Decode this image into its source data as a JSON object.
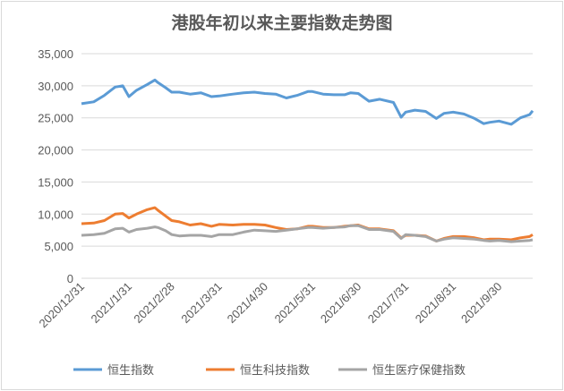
{
  "chart_data": {
    "type": "line",
    "title": "港股年初以来主要指数走势图",
    "xlabel": "",
    "ylabel": "",
    "ylim": [
      0,
      35000
    ],
    "y_ticks": [
      "0",
      "5,000",
      "10,000",
      "15,000",
      "20,000",
      "25,000",
      "30,000",
      "35,000"
    ],
    "x_ticks": [
      "2020/12/31",
      "2021/1/31",
      "2021/2/28",
      "2021/3/31",
      "2021/4/30",
      "2021/5/31",
      "2021/6/30",
      "2021/7/31",
      "2021/8/31",
      "2021/9/30"
    ],
    "grid": true,
    "legend_position": "bottom",
    "series": [
      {
        "name": "恒生指数",
        "color": "#5b9bd5",
        "x": [
          "2020/12/31",
          "2021/1/8",
          "2021/1/15",
          "2021/1/22",
          "2021/1/27",
          "2021/1/31",
          "2021/2/5",
          "2021/2/12",
          "2021/2/17",
          "2021/2/19",
          "2021/2/24",
          "2021/2/28",
          "2021/3/5",
          "2021/3/12",
          "2021/3/19",
          "2021/3/26",
          "2021/3/31",
          "2021/4/9",
          "2021/4/16",
          "2021/4/23",
          "2021/4/30",
          "2021/5/7",
          "2021/5/14",
          "2021/5/21",
          "2021/5/28",
          "2021/5/31",
          "2021/6/7",
          "2021/6/14",
          "2021/6/21",
          "2021/6/25",
          "2021/6/30",
          "2021/7/7",
          "2021/7/14",
          "2021/7/23",
          "2021/7/28",
          "2021/7/31",
          "2021/8/6",
          "2021/8/13",
          "2021/8/20",
          "2021/8/25",
          "2021/8/31",
          "2021/9/7",
          "2021/9/14",
          "2021/9/20",
          "2021/9/24",
          "2021/9/30",
          "2021/10/8",
          "2021/10/14",
          "2021/10/20",
          "2021/10/22"
        ],
        "values": [
          27200,
          27500,
          28500,
          29800,
          30000,
          28300,
          29300,
          30200,
          30900,
          30500,
          29700,
          29000,
          29000,
          28700,
          28900,
          28300,
          28400,
          28700,
          28900,
          29000,
          28800,
          28700,
          28100,
          28500,
          29100,
          29100,
          28700,
          28600,
          28600,
          28900,
          28800,
          27600,
          27900,
          27400,
          25100,
          25900,
          26200,
          26000,
          24900,
          25700,
          25900,
          25600,
          24900,
          24100,
          24300,
          24500,
          24000,
          25000,
          25500,
          26100
        ]
      },
      {
        "name": "恒生科技指数",
        "color": "#ed7d31",
        "x": [
          "2020/12/31",
          "2021/1/8",
          "2021/1/15",
          "2021/1/22",
          "2021/1/27",
          "2021/1/31",
          "2021/2/5",
          "2021/2/12",
          "2021/2/17",
          "2021/2/19",
          "2021/2/24",
          "2021/2/28",
          "2021/3/5",
          "2021/3/12",
          "2021/3/19",
          "2021/3/26",
          "2021/3/31",
          "2021/4/9",
          "2021/4/16",
          "2021/4/23",
          "2021/4/30",
          "2021/5/7",
          "2021/5/14",
          "2021/5/21",
          "2021/5/28",
          "2021/5/31",
          "2021/6/7",
          "2021/6/14",
          "2021/6/21",
          "2021/6/25",
          "2021/6/30",
          "2021/7/7",
          "2021/7/14",
          "2021/7/23",
          "2021/7/28",
          "2021/7/31",
          "2021/8/6",
          "2021/8/13",
          "2021/8/20",
          "2021/8/25",
          "2021/8/31",
          "2021/9/7",
          "2021/9/14",
          "2021/9/20",
          "2021/9/24",
          "2021/9/30",
          "2021/10/8",
          "2021/10/14",
          "2021/10/20",
          "2021/10/22"
        ],
        "values": [
          8500,
          8600,
          9000,
          10000,
          10100,
          9400,
          10000,
          10700,
          11000,
          10600,
          9700,
          9000,
          8800,
          8300,
          8500,
          8100,
          8400,
          8300,
          8400,
          8400,
          8300,
          7900,
          7600,
          7700,
          8100,
          8100,
          7900,
          7900,
          8100,
          8200,
          8300,
          7700,
          7700,
          7400,
          6300,
          6700,
          6700,
          6600,
          5800,
          6200,
          6500,
          6500,
          6300,
          6000,
          6100,
          6100,
          6000,
          6300,
          6500,
          6800
        ]
      },
      {
        "name": "恒生医疗保健指数",
        "color": "#a5a5a5",
        "x": [
          "2020/12/31",
          "2021/1/8",
          "2021/1/15",
          "2021/1/22",
          "2021/1/27",
          "2021/1/31",
          "2021/2/5",
          "2021/2/12",
          "2021/2/17",
          "2021/2/19",
          "2021/2/24",
          "2021/2/28",
          "2021/3/5",
          "2021/3/12",
          "2021/3/19",
          "2021/3/26",
          "2021/3/31",
          "2021/4/9",
          "2021/4/16",
          "2021/4/23",
          "2021/4/30",
          "2021/5/7",
          "2021/5/14",
          "2021/5/21",
          "2021/5/28",
          "2021/5/31",
          "2021/6/7",
          "2021/6/14",
          "2021/6/21",
          "2021/6/25",
          "2021/6/30",
          "2021/7/7",
          "2021/7/14",
          "2021/7/23",
          "2021/7/28",
          "2021/7/31",
          "2021/8/6",
          "2021/8/13",
          "2021/8/20",
          "2021/8/25",
          "2021/8/31",
          "2021/9/7",
          "2021/9/14",
          "2021/9/20",
          "2021/9/24",
          "2021/9/30",
          "2021/10/8",
          "2021/10/14",
          "2021/10/20",
          "2021/10/22"
        ],
        "values": [
          6700,
          6800,
          7000,
          7700,
          7800,
          7200,
          7600,
          7800,
          8000,
          7900,
          7400,
          6800,
          6600,
          6700,
          6700,
          6500,
          6800,
          6800,
          7200,
          7500,
          7400,
          7300,
          7500,
          7700,
          7900,
          7900,
          7800,
          7900,
          8000,
          8200,
          8200,
          7600,
          7600,
          7300,
          6200,
          6800,
          6700,
          6500,
          5800,
          6100,
          6300,
          6200,
          6100,
          5900,
          5800,
          5900,
          5700,
          5800,
          5900,
          6000
        ]
      }
    ]
  }
}
